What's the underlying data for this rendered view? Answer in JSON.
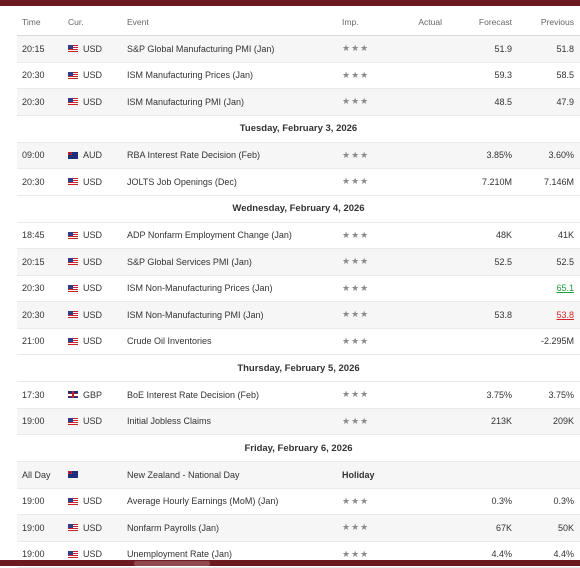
{
  "header": {
    "time": "Time",
    "cur": "Cur.",
    "event": "Event",
    "imp": "Imp.",
    "actual": "Actual",
    "forecast": "Forecast",
    "previous": "Previous"
  },
  "rows": [
    {
      "type": "event",
      "time": "20:15",
      "flag": "us",
      "cur": "USD",
      "event": "S&P Global Manufacturing PMI  (Jan)",
      "actual": "",
      "forecast": "51.9",
      "previous": "51.8",
      "prev_state": ""
    },
    {
      "type": "event",
      "time": "20:30",
      "flag": "us",
      "cur": "USD",
      "event": "ISM Manufacturing Prices  (Jan)",
      "actual": "",
      "forecast": "59.3",
      "previous": "58.5",
      "prev_state": ""
    },
    {
      "type": "event",
      "time": "20:30",
      "flag": "us",
      "cur": "USD",
      "event": "ISM Manufacturing PMI  (Jan)",
      "actual": "",
      "forecast": "48.5",
      "previous": "47.9",
      "prev_state": ""
    },
    {
      "type": "date",
      "label": "Tuesday, February 3, 2026"
    },
    {
      "type": "event",
      "time": "09:00",
      "flag": "au",
      "cur": "AUD",
      "event": "RBA Interest Rate Decision  (Feb)",
      "actual": "",
      "forecast": "3.85%",
      "previous": "3.60%",
      "prev_state": ""
    },
    {
      "type": "event",
      "time": "20:30",
      "flag": "us",
      "cur": "USD",
      "event": "JOLTS Job Openings  (Dec)",
      "actual": "",
      "forecast": "7.210M",
      "previous": "7.146M",
      "prev_state": ""
    },
    {
      "type": "date",
      "label": "Wednesday, February 4, 2026"
    },
    {
      "type": "event",
      "time": "18:45",
      "flag": "us",
      "cur": "USD",
      "event": "ADP Nonfarm Employment Change  (Jan)",
      "actual": "",
      "forecast": "48K",
      "previous": "41K",
      "prev_state": ""
    },
    {
      "type": "event",
      "time": "20:15",
      "flag": "us",
      "cur": "USD",
      "event": "S&P Global Services PMI  (Jan)",
      "actual": "",
      "forecast": "52.5",
      "previous": "52.5",
      "prev_state": ""
    },
    {
      "type": "event",
      "time": "20:30",
      "flag": "us",
      "cur": "USD",
      "event": "ISM Non-Manufacturing Prices  (Jan)",
      "actual": "",
      "forecast": "",
      "previous": "65.1",
      "prev_state": "up"
    },
    {
      "type": "event",
      "time": "20:30",
      "flag": "us",
      "cur": "USD",
      "event": "ISM Non-Manufacturing PMI  (Jan)",
      "actual": "",
      "forecast": "53.8",
      "previous": "53.8",
      "prev_state": "down"
    },
    {
      "type": "event",
      "time": "21:00",
      "flag": "us",
      "cur": "USD",
      "event": "Crude Oil Inventories",
      "actual": "",
      "forecast": "",
      "previous": "-2.295M",
      "prev_state": ""
    },
    {
      "type": "date",
      "label": "Thursday, February 5, 2026"
    },
    {
      "type": "event",
      "time": "17:30",
      "flag": "gb",
      "cur": "GBP",
      "event": "BoE Interest Rate Decision  (Feb)",
      "actual": "",
      "forecast": "3.75%",
      "previous": "3.75%",
      "prev_state": ""
    },
    {
      "type": "event",
      "time": "19:00",
      "flag": "us",
      "cur": "USD",
      "event": "Initial Jobless Claims",
      "actual": "",
      "forecast": "213K",
      "previous": "209K",
      "prev_state": ""
    },
    {
      "type": "date",
      "label": "Friday, February 6, 2026"
    },
    {
      "type": "holiday",
      "time": "All Day",
      "flag": "nz",
      "cur": "",
      "event": "New Zealand - National Day",
      "holiday": "Holiday"
    },
    {
      "type": "event",
      "time": "19:00",
      "flag": "us",
      "cur": "USD",
      "event": "Average Hourly Earnings (MoM) (Jan)",
      "actual": "",
      "forecast": "0.3%",
      "previous": "0.3%",
      "prev_state": ""
    },
    {
      "type": "event",
      "time": "19:00",
      "flag": "us",
      "cur": "USD",
      "event": "Nonfarm Payrolls  (Jan)",
      "actual": "",
      "forecast": "67K",
      "previous": "50K",
      "prev_state": ""
    },
    {
      "type": "event",
      "time": "19:00",
      "flag": "us",
      "cur": "USD",
      "event": "Unemployment Rate  (Jan)",
      "actual": "",
      "forecast": "4.4%",
      "previous": "4.4%",
      "prev_state": ""
    }
  ],
  "importance_icon": "star-icon",
  "colors": {
    "top_bar": "#6b1a1f",
    "up": "#1f9e3a",
    "down": "#d2262c",
    "star": "#8a8a8a"
  }
}
